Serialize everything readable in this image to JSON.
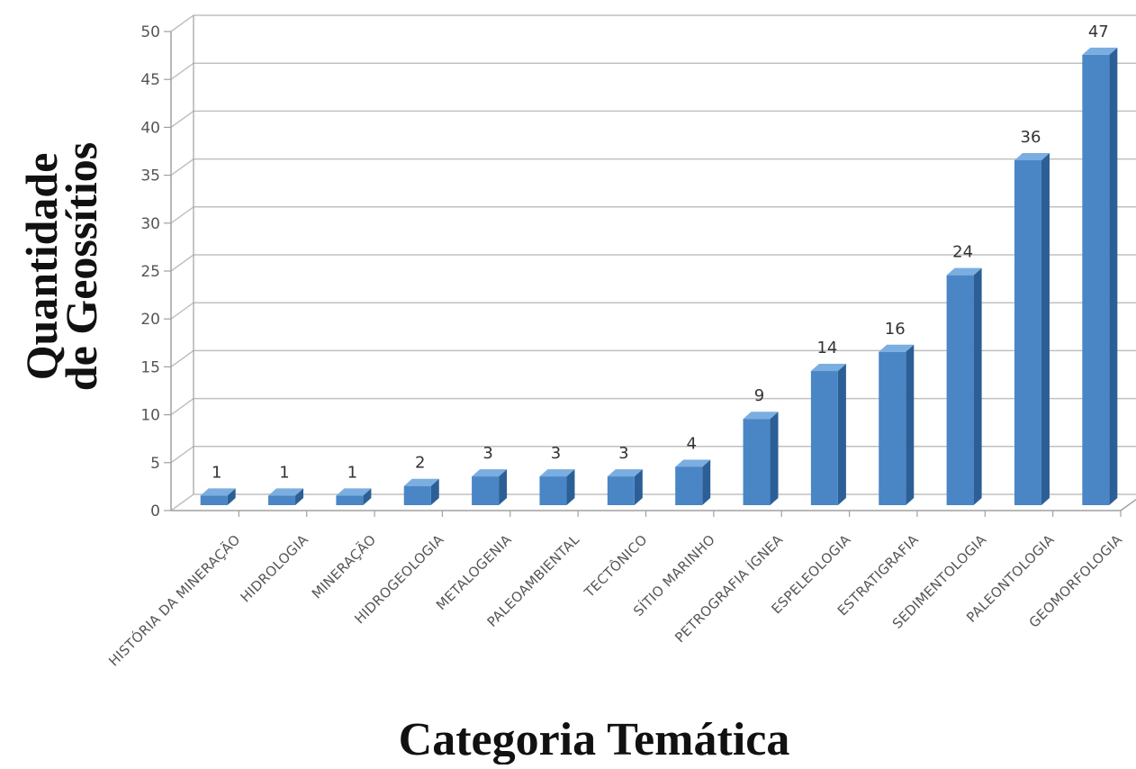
{
  "chart_data": {
    "type": "bar",
    "title": "",
    "xlabel": "Categoria Temática",
    "ylabel_lines": [
      "Quantidade",
      "de Geossítios"
    ],
    "categories": [
      "HISTÓRIA DA MINERAÇÃO",
      "HIDROLOGIA",
      "MINERAÇÃO",
      "HIDROGEOLOGIA",
      "METALOGENIA",
      "PALEOAMBIENTAL",
      "TECTÔNICO",
      "SÍTIO MARINHO",
      "PETROGRAFIA ÍGNEA",
      "ESPELEOLOGIA",
      "ESTRATIGRAFIA",
      "SEDIMENTOLOGIA",
      "PALEONTOLOGIA",
      "GEOMORFOLOGIA"
    ],
    "values": [
      1,
      1,
      1,
      2,
      3,
      3,
      3,
      4,
      9,
      14,
      16,
      24,
      36,
      47
    ],
    "data_labels": [
      "1",
      "1",
      "1",
      "2",
      "3",
      "3",
      "3",
      "4",
      "9",
      "14",
      "16",
      "24",
      "36",
      "47"
    ],
    "ylim": [
      0,
      50
    ],
    "yticks": [
      "0",
      "5",
      "10",
      "15",
      "20",
      "25",
      "30",
      "35",
      "40",
      "45",
      "50"
    ],
    "grid": true,
    "style": "3d-column",
    "colors": {
      "bar_front": "#4a86c5",
      "bar_side": "#2c5f96",
      "bar_top": "#7aaee0",
      "grid": "#c0c0c0",
      "axis": "#a0a0a0"
    }
  }
}
